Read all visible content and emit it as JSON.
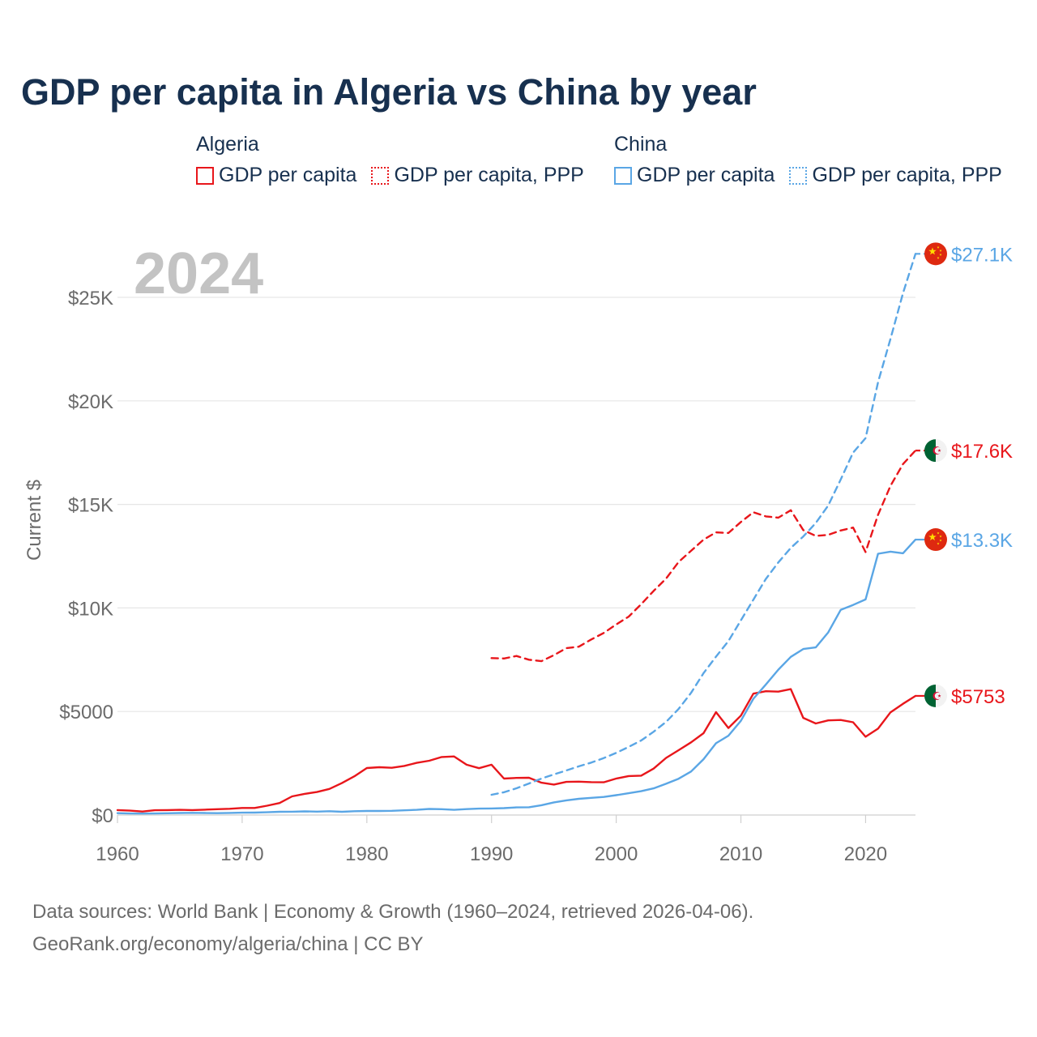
{
  "title": "GDP per capita in Algeria vs China by year",
  "legend": {
    "groups": [
      {
        "name": "Algeria",
        "items": [
          {
            "label": "GDP per capita",
            "color": "#e8161b",
            "style": "solid"
          },
          {
            "label": "GDP per capita, PPP",
            "color": "#e8161b",
            "style": "dotted"
          }
        ]
      },
      {
        "name": "China",
        "items": [
          {
            "label": "GDP per capita",
            "color": "#5aa6e5",
            "style": "solid"
          },
          {
            "label": "GDP per capita, PPP",
            "color": "#5aa6e5",
            "style": "dotted"
          }
        ]
      }
    ]
  },
  "source": {
    "line1": "Data sources: World Bank | Economy & Growth (1960–2024, retrieved 2026-04-06).",
    "line2": "GeoRank.org/economy/algeria/china | CC BY"
  },
  "chart_data": {
    "type": "line",
    "title": "GDP per capita in Algeria vs China by year",
    "year_watermark": "2024",
    "ylabel": "Current $",
    "xlabel": "",
    "xlim": [
      1960,
      2024
    ],
    "ylim": [
      0,
      27500
    ],
    "x_ticks": [
      1960,
      1970,
      1980,
      1990,
      2000,
      2010,
      2020
    ],
    "x_tick_labels": [
      "1960",
      "1970",
      "1980",
      "1990",
      "2000",
      "2010",
      "2020"
    ],
    "y_ticks": [
      0,
      5000,
      10000,
      15000,
      20000,
      25000
    ],
    "y_tick_labels": [
      "$0",
      "$5000",
      "$10K",
      "$15K",
      "$20K",
      "$25K"
    ],
    "grid": true,
    "series": [
      {
        "name": "Algeria GDP per capita",
        "country": "Algeria",
        "color": "#e8161b",
        "dash": false,
        "end_label": "$5753",
        "flag": "dz",
        "x": [
          1960,
          1961,
          1962,
          1963,
          1964,
          1965,
          1966,
          1967,
          1968,
          1969,
          1970,
          1971,
          1972,
          1973,
          1974,
          1975,
          1976,
          1977,
          1978,
          1979,
          1980,
          1981,
          1982,
          1983,
          1984,
          1985,
          1986,
          1987,
          1988,
          1989,
          1990,
          1991,
          1992,
          1993,
          1994,
          1995,
          1996,
          1997,
          1998,
          1999,
          2000,
          2001,
          2002,
          2003,
          2004,
          2005,
          2006,
          2007,
          2008,
          2009,
          2010,
          2011,
          2012,
          2013,
          2014,
          2015,
          2016,
          2017,
          2018,
          2019,
          2020,
          2021,
          2022,
          2023,
          2024
        ],
        "values": [
          240,
          210,
          170,
          230,
          240,
          250,
          240,
          260,
          280,
          300,
          340,
          340,
          450,
          580,
          900,
          1020,
          1110,
          1260,
          1540,
          1870,
          2270,
          2310,
          2280,
          2370,
          2520,
          2620,
          2800,
          2830,
          2430,
          2260,
          2430,
          1760,
          1790,
          1800,
          1560,
          1470,
          1600,
          1610,
          1590,
          1580,
          1760,
          1880,
          1900,
          2240,
          2760,
          3130,
          3510,
          3950,
          4970,
          4200,
          4800,
          5860,
          5980,
          5960,
          6080,
          4690,
          4420,
          4570,
          4590,
          4480,
          3780,
          4170,
          4960,
          5370,
          5753
        ]
      },
      {
        "name": "Algeria GDP per capita, PPP",
        "country": "Algeria",
        "color": "#e8161b",
        "dash": true,
        "end_label": "$17.6K",
        "flag": "dz",
        "x": [
          1990,
          1991,
          1992,
          1993,
          1994,
          1995,
          1996,
          1997,
          1998,
          1999,
          2000,
          2001,
          2002,
          2003,
          2004,
          2005,
          2006,
          2007,
          2008,
          2009,
          2010,
          2011,
          2012,
          2013,
          2014,
          2015,
          2016,
          2017,
          2018,
          2019,
          2020,
          2021,
          2022,
          2023,
          2024
        ],
        "values": [
          7580,
          7560,
          7680,
          7500,
          7430,
          7720,
          8060,
          8130,
          8480,
          8790,
          9200,
          9580,
          10180,
          10820,
          11420,
          12220,
          12760,
          13300,
          13650,
          13620,
          14150,
          14620,
          14420,
          14360,
          14720,
          13760,
          13480,
          13530,
          13740,
          13880,
          12700,
          14500,
          15900,
          16950,
          17600
        ]
      },
      {
        "name": "China GDP per capita",
        "country": "China",
        "color": "#5aa6e5",
        "dash": false,
        "end_label": "$13.3K",
        "flag": "cn",
        "x": [
          1960,
          1961,
          1962,
          1963,
          1964,
          1965,
          1966,
          1967,
          1968,
          1969,
          1970,
          1971,
          1972,
          1973,
          1974,
          1975,
          1976,
          1977,
          1978,
          1979,
          1980,
          1981,
          1982,
          1983,
          1984,
          1985,
          1986,
          1987,
          1988,
          1989,
          1990,
          1991,
          1992,
          1993,
          1994,
          1995,
          1996,
          1997,
          1998,
          1999,
          2000,
          2001,
          2002,
          2003,
          2004,
          2005,
          2006,
          2007,
          2008,
          2009,
          2010,
          2011,
          2012,
          2013,
          2014,
          2015,
          2016,
          2017,
          2018,
          2019,
          2020,
          2021,
          2022,
          2023,
          2024
        ],
        "values": [
          90,
          76,
          70,
          74,
          85,
          98,
          104,
          97,
          91,
          100,
          113,
          118,
          132,
          157,
          160,
          178,
          165,
          185,
          156,
          183,
          195,
          197,
          203,
          225,
          250,
          294,
          282,
          252,
          284,
          310,
          318,
          333,
          366,
          377,
          473,
          609,
          709,
          781,
          828,
          873,
          959,
          1053,
          1149,
          1289,
          1509,
          1753,
          2099,
          2694,
          3468,
          3832,
          4550,
          5614,
          6301,
          7020,
          7636,
          8016,
          8094,
          8817,
          9905,
          10144,
          10409,
          12618,
          12720,
          12640,
          13300
        ]
      },
      {
        "name": "China GDP per capita, PPP",
        "country": "China",
        "color": "#5aa6e5",
        "dash": true,
        "end_label": "$27.1K",
        "flag": "cn",
        "x": [
          1990,
          1991,
          1992,
          1993,
          1994,
          1995,
          1996,
          1997,
          1998,
          1999,
          2000,
          2001,
          2002,
          2003,
          2004,
          2005,
          2006,
          2007,
          2008,
          2009,
          2010,
          2011,
          2012,
          2013,
          2014,
          2015,
          2016,
          2017,
          2018,
          2019,
          2020,
          2021,
          2022,
          2023,
          2024
        ],
        "values": [
          980,
          1100,
          1290,
          1520,
          1760,
          1960,
          2150,
          2350,
          2530,
          2750,
          3000,
          3290,
          3600,
          4020,
          4500,
          5120,
          5900,
          6850,
          7650,
          8400,
          9400,
          10400,
          11400,
          12200,
          12900,
          13450,
          14100,
          14950,
          16200,
          17500,
          18200,
          20900,
          23000,
          25200,
          27100
        ]
      }
    ]
  }
}
